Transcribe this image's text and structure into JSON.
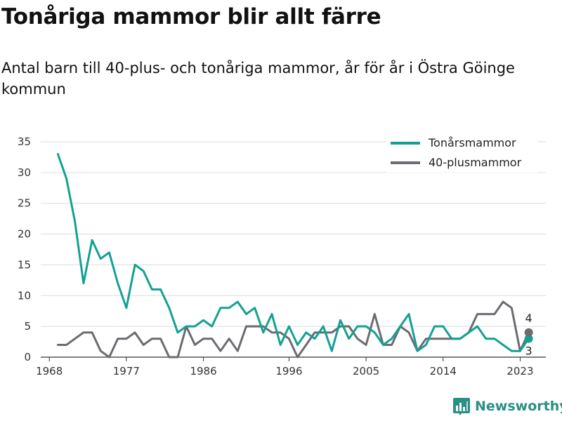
{
  "title": "Tonåriga mammor blir allt färre",
  "subtitle": "Antal barn till 40-plus- och tonåriga mammor, år för år i Östra Göinge kommun",
  "brand": {
    "name": "Newsworthy",
    "icon": "bar-chart-logo-icon",
    "color": "#2a8f84"
  },
  "chart_data": {
    "type": "line",
    "xlim": [
      1967,
      2026
    ],
    "ylim": [
      0,
      35
    ],
    "xticks": [
      1968,
      1977,
      1986,
      1996,
      2005,
      2014,
      2023
    ],
    "yticks": [
      0,
      5,
      10,
      15,
      20,
      25,
      30,
      35
    ],
    "grid": true,
    "legend_position": "top-right",
    "series": [
      {
        "name": "Tonårsmammor",
        "color": "#13a192",
        "points": [
          [
            1969,
            33
          ],
          [
            1970,
            29
          ],
          [
            1971,
            22
          ],
          [
            1972,
            12
          ],
          [
            1973,
            19
          ],
          [
            1974,
            16
          ],
          [
            1975,
            17
          ],
          [
            1976,
            12
          ],
          [
            1977,
            8
          ],
          [
            1978,
            15
          ],
          [
            1979,
            14
          ],
          [
            1980,
            11
          ],
          [
            1981,
            11
          ],
          [
            1982,
            8
          ],
          [
            1983,
            4
          ],
          [
            1984,
            5
          ],
          [
            1985,
            5
          ],
          [
            1986,
            6
          ],
          [
            1987,
            5
          ],
          [
            1988,
            8
          ],
          [
            1989,
            8
          ],
          [
            1990,
            9
          ],
          [
            1991,
            7
          ],
          [
            1992,
            8
          ],
          [
            1993,
            4
          ],
          [
            1994,
            7
          ],
          [
            1995,
            2
          ],
          [
            1996,
            5
          ],
          [
            1997,
            2
          ],
          [
            1998,
            4
          ],
          [
            1999,
            3
          ],
          [
            2000,
            5
          ],
          [
            2001,
            1
          ],
          [
            2002,
            6
          ],
          [
            2003,
            3
          ],
          [
            2004,
            5
          ],
          [
            2005,
            5
          ],
          [
            2006,
            4
          ],
          [
            2007,
            2
          ],
          [
            2008,
            3
          ],
          [
            2009,
            5
          ],
          [
            2010,
            7
          ],
          [
            2011,
            1
          ],
          [
            2012,
            2
          ],
          [
            2013,
            5
          ],
          [
            2014,
            5
          ],
          [
            2015,
            3
          ],
          [
            2016,
            3
          ],
          [
            2017,
            4
          ],
          [
            2018,
            5
          ],
          [
            2019,
            3
          ],
          [
            2020,
            3
          ],
          [
            2021,
            2
          ],
          [
            2022,
            1
          ],
          [
            2023,
            1
          ],
          [
            2024,
            3
          ]
        ],
        "last_label": "3"
      },
      {
        "name": "40-plusmammor",
        "color": "#6b6b72",
        "points": [
          [
            1969,
            2
          ],
          [
            1970,
            2
          ],
          [
            1971,
            3
          ],
          [
            1972,
            4
          ],
          [
            1973,
            4
          ],
          [
            1974,
            1
          ],
          [
            1975,
            0
          ],
          [
            1976,
            3
          ],
          [
            1977,
            3
          ],
          [
            1978,
            4
          ],
          [
            1979,
            2
          ],
          [
            1980,
            3
          ],
          [
            1981,
            3
          ],
          [
            1982,
            0
          ],
          [
            1983,
            0
          ],
          [
            1984,
            5
          ],
          [
            1985,
            2
          ],
          [
            1986,
            3
          ],
          [
            1987,
            3
          ],
          [
            1988,
            1
          ],
          [
            1989,
            3
          ],
          [
            1990,
            1
          ],
          [
            1991,
            5
          ],
          [
            1992,
            5
          ],
          [
            1993,
            5
          ],
          [
            1994,
            4
          ],
          [
            1995,
            4
          ],
          [
            1996,
            3
          ],
          [
            1997,
            0
          ],
          [
            1998,
            2
          ],
          [
            1999,
            4
          ],
          [
            2000,
            4
          ],
          [
            2001,
            4
          ],
          [
            2002,
            5
          ],
          [
            2003,
            5
          ],
          [
            2004,
            3
          ],
          [
            2005,
            2
          ],
          [
            2006,
            7
          ],
          [
            2007,
            2
          ],
          [
            2008,
            2
          ],
          [
            2009,
            5
          ],
          [
            2010,
            4
          ],
          [
            2011,
            1
          ],
          [
            2012,
            3
          ],
          [
            2013,
            3
          ],
          [
            2014,
            3
          ],
          [
            2015,
            3
          ],
          [
            2016,
            3
          ],
          [
            2017,
            4
          ],
          [
            2018,
            7
          ],
          [
            2019,
            7
          ],
          [
            2020,
            7
          ],
          [
            2021,
            9
          ],
          [
            2022,
            8
          ],
          [
            2023,
            1
          ],
          [
            2024,
            4
          ]
        ],
        "last_label": "4"
      }
    ]
  }
}
